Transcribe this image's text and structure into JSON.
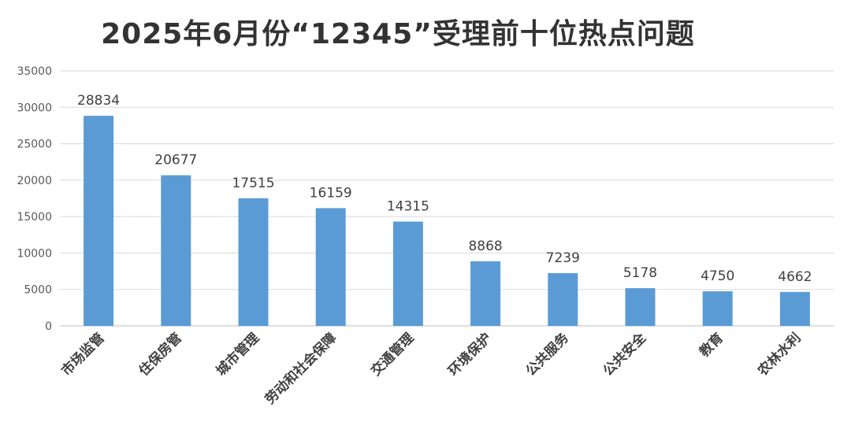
{
  "chart_data": {
    "type": "bar",
    "title": "2025年6月份“12345”受理前十位热点问题",
    "categories": [
      "市场监管",
      "住保房管",
      "城市管理",
      "劳动和社会保障",
      "交通管理",
      "环境保护",
      "公共服务",
      "公共安全",
      "教育",
      "农林水利"
    ],
    "values": [
      28834,
      20677,
      17515,
      16159,
      14315,
      8868,
      7239,
      5178,
      4750,
      4662
    ],
    "data_labels": [
      "28834",
      "20677",
      "17515",
      "16159",
      "14315",
      "8868",
      "7239",
      "5178",
      "4750",
      "4662"
    ],
    "y_ticks": [
      "0",
      "5000",
      "10000",
      "15000",
      "20000",
      "25000",
      "30000",
      "35000"
    ],
    "ylim": [
      0,
      35000
    ],
    "grid": true,
    "legend": "none",
    "bar_color": "#5b9bd5"
  }
}
